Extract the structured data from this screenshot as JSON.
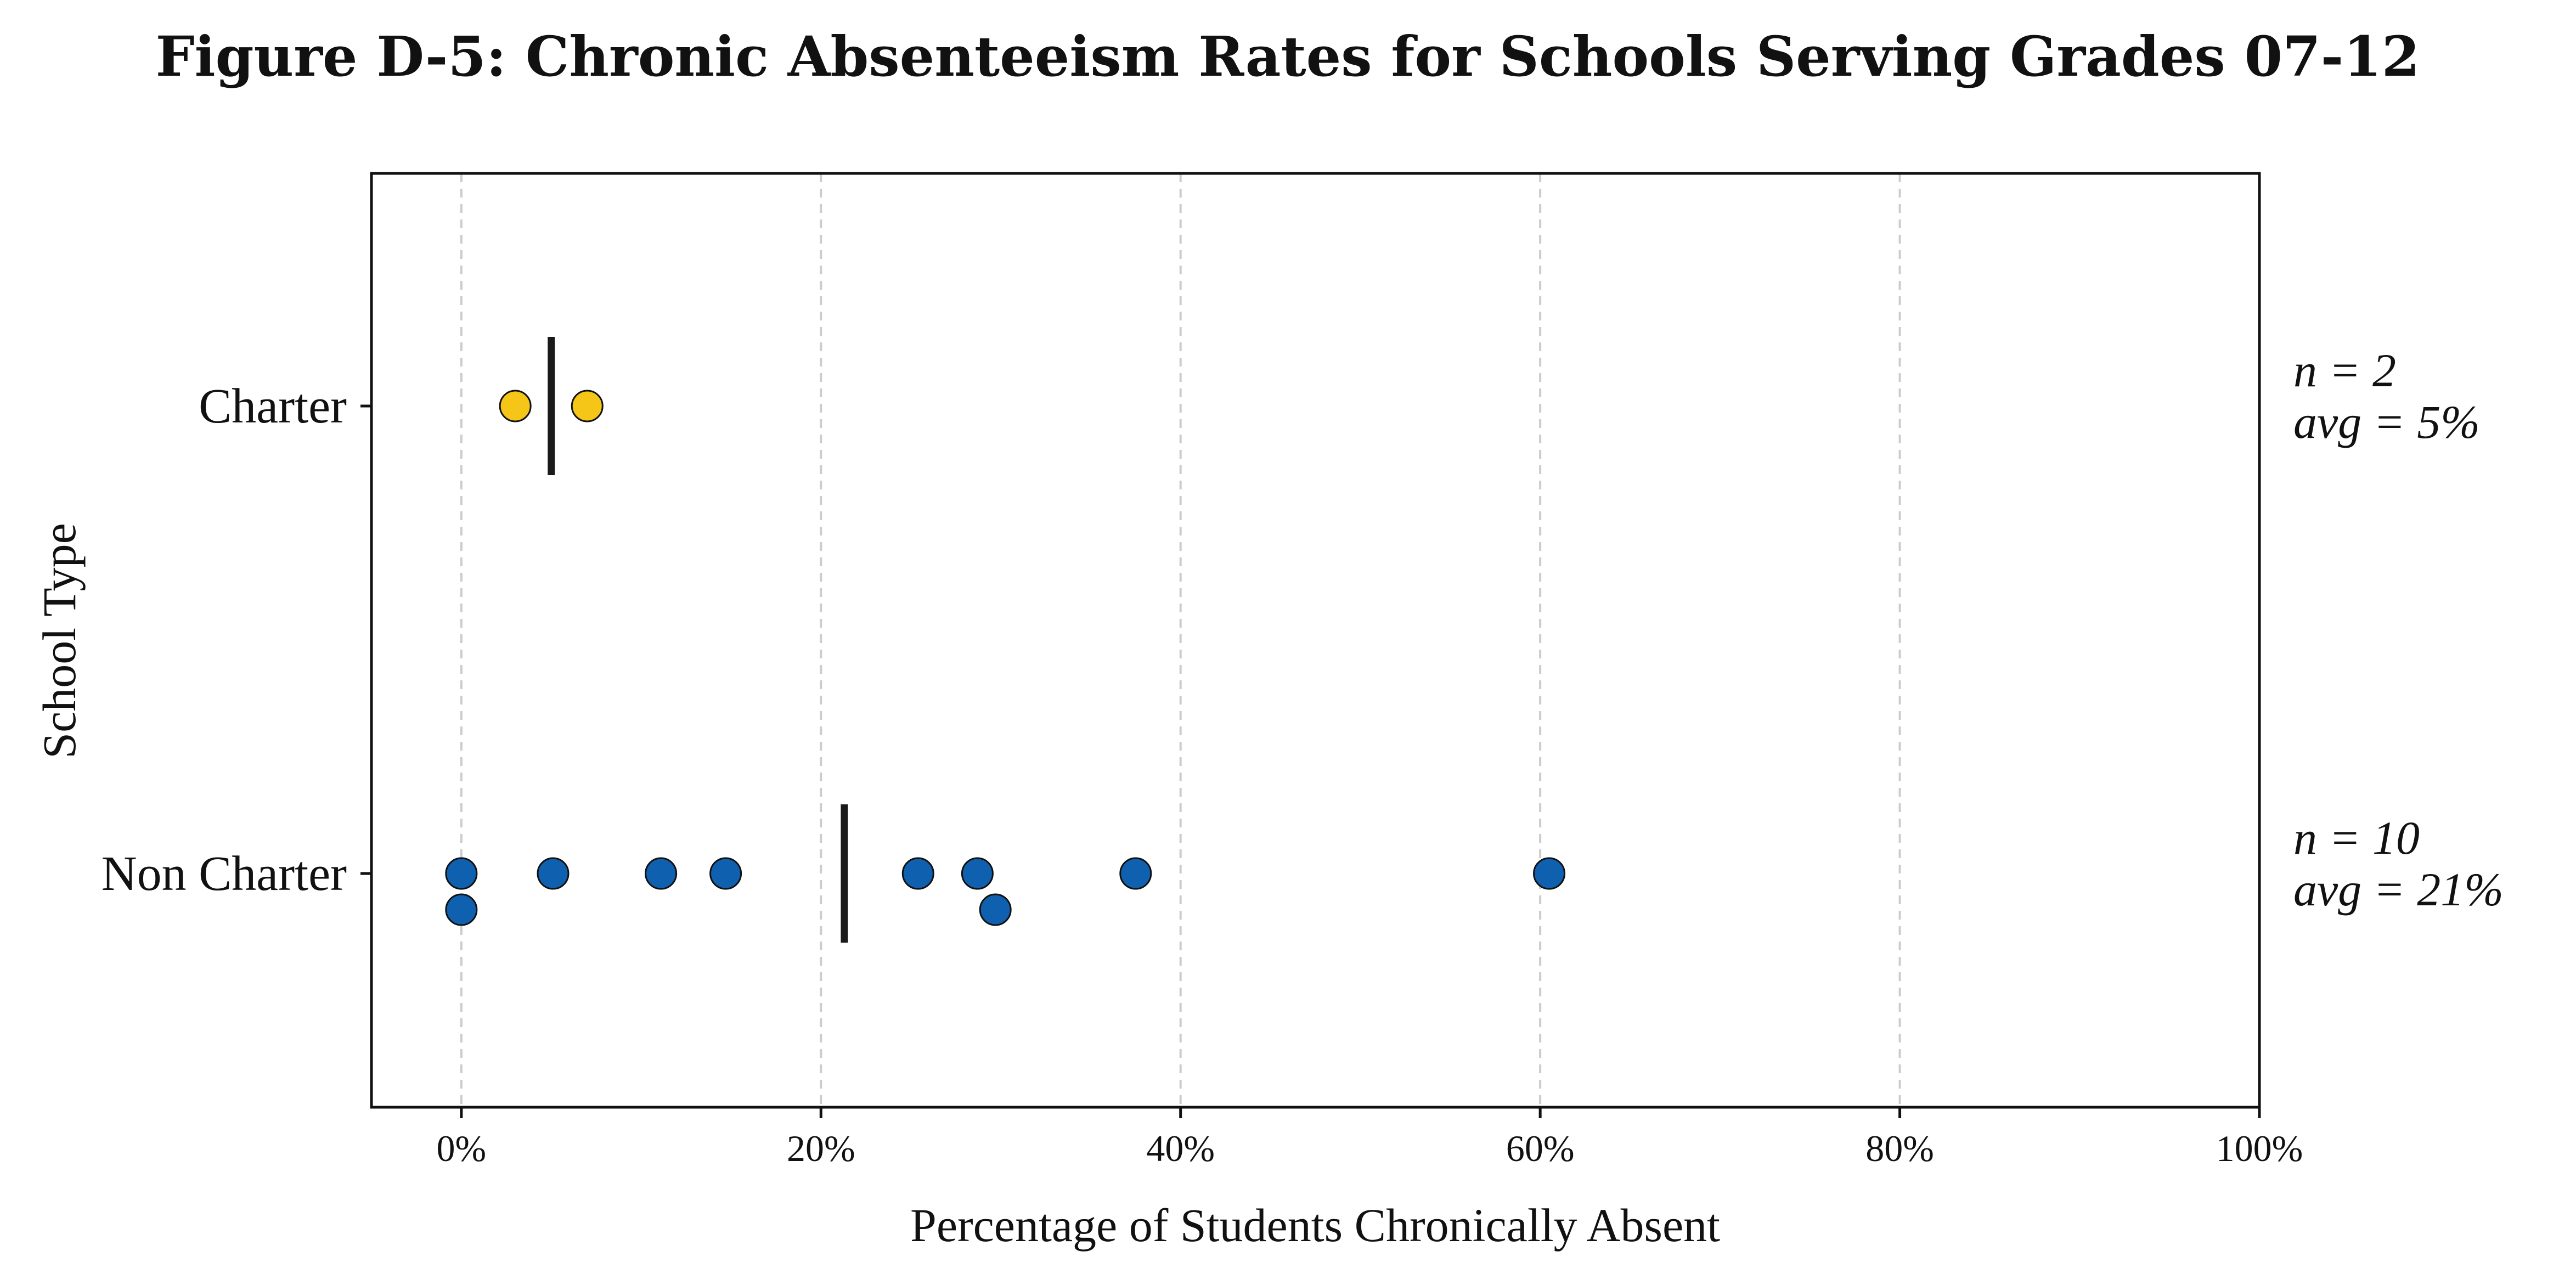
{
  "chart_data": {
    "type": "scatter",
    "title": "Figure D-5: Chronic Absenteeism Rates for Schools Serving Grades 07-12",
    "xlabel": "Percentage of Students Chronically Absent",
    "ylabel": "School Type",
    "xlim": [
      -5,
      100
    ],
    "x_ticks": [
      0,
      20,
      40,
      60,
      80,
      100
    ],
    "x_tick_labels": [
      "0%",
      "20%",
      "40%",
      "60%",
      "80%",
      "100%"
    ],
    "grid": "vertical dashed",
    "categories": [
      "Charter",
      "Non Charter"
    ],
    "series": [
      {
        "category": "Charter",
        "color": "#F5C518",
        "points": [
          {
            "x": 3.0,
            "lane": 0
          },
          {
            "x": 7.0,
            "lane": 0
          }
        ],
        "mean": 5,
        "annotation_n": "n = 2",
        "annotation_avg": "avg = 5%"
      },
      {
        "category": "Non Charter",
        "color": "#1060B0",
        "points": [
          {
            "x": 0.0,
            "lane": 0
          },
          {
            "x": 0.0,
            "lane": 1
          },
          {
            "x": 5.1,
            "lane": 0
          },
          {
            "x": 11.1,
            "lane": 0
          },
          {
            "x": 14.7,
            "lane": 0
          },
          {
            "x": 25.4,
            "lane": 0
          },
          {
            "x": 28.7,
            "lane": 0
          },
          {
            "x": 29.7,
            "lane": 1
          },
          {
            "x": 37.5,
            "lane": 0
          },
          {
            "x": 60.5,
            "lane": 0
          }
        ],
        "mean": 21.3,
        "annotation_n": "n = 10",
        "annotation_avg": "avg = 21%"
      }
    ]
  }
}
